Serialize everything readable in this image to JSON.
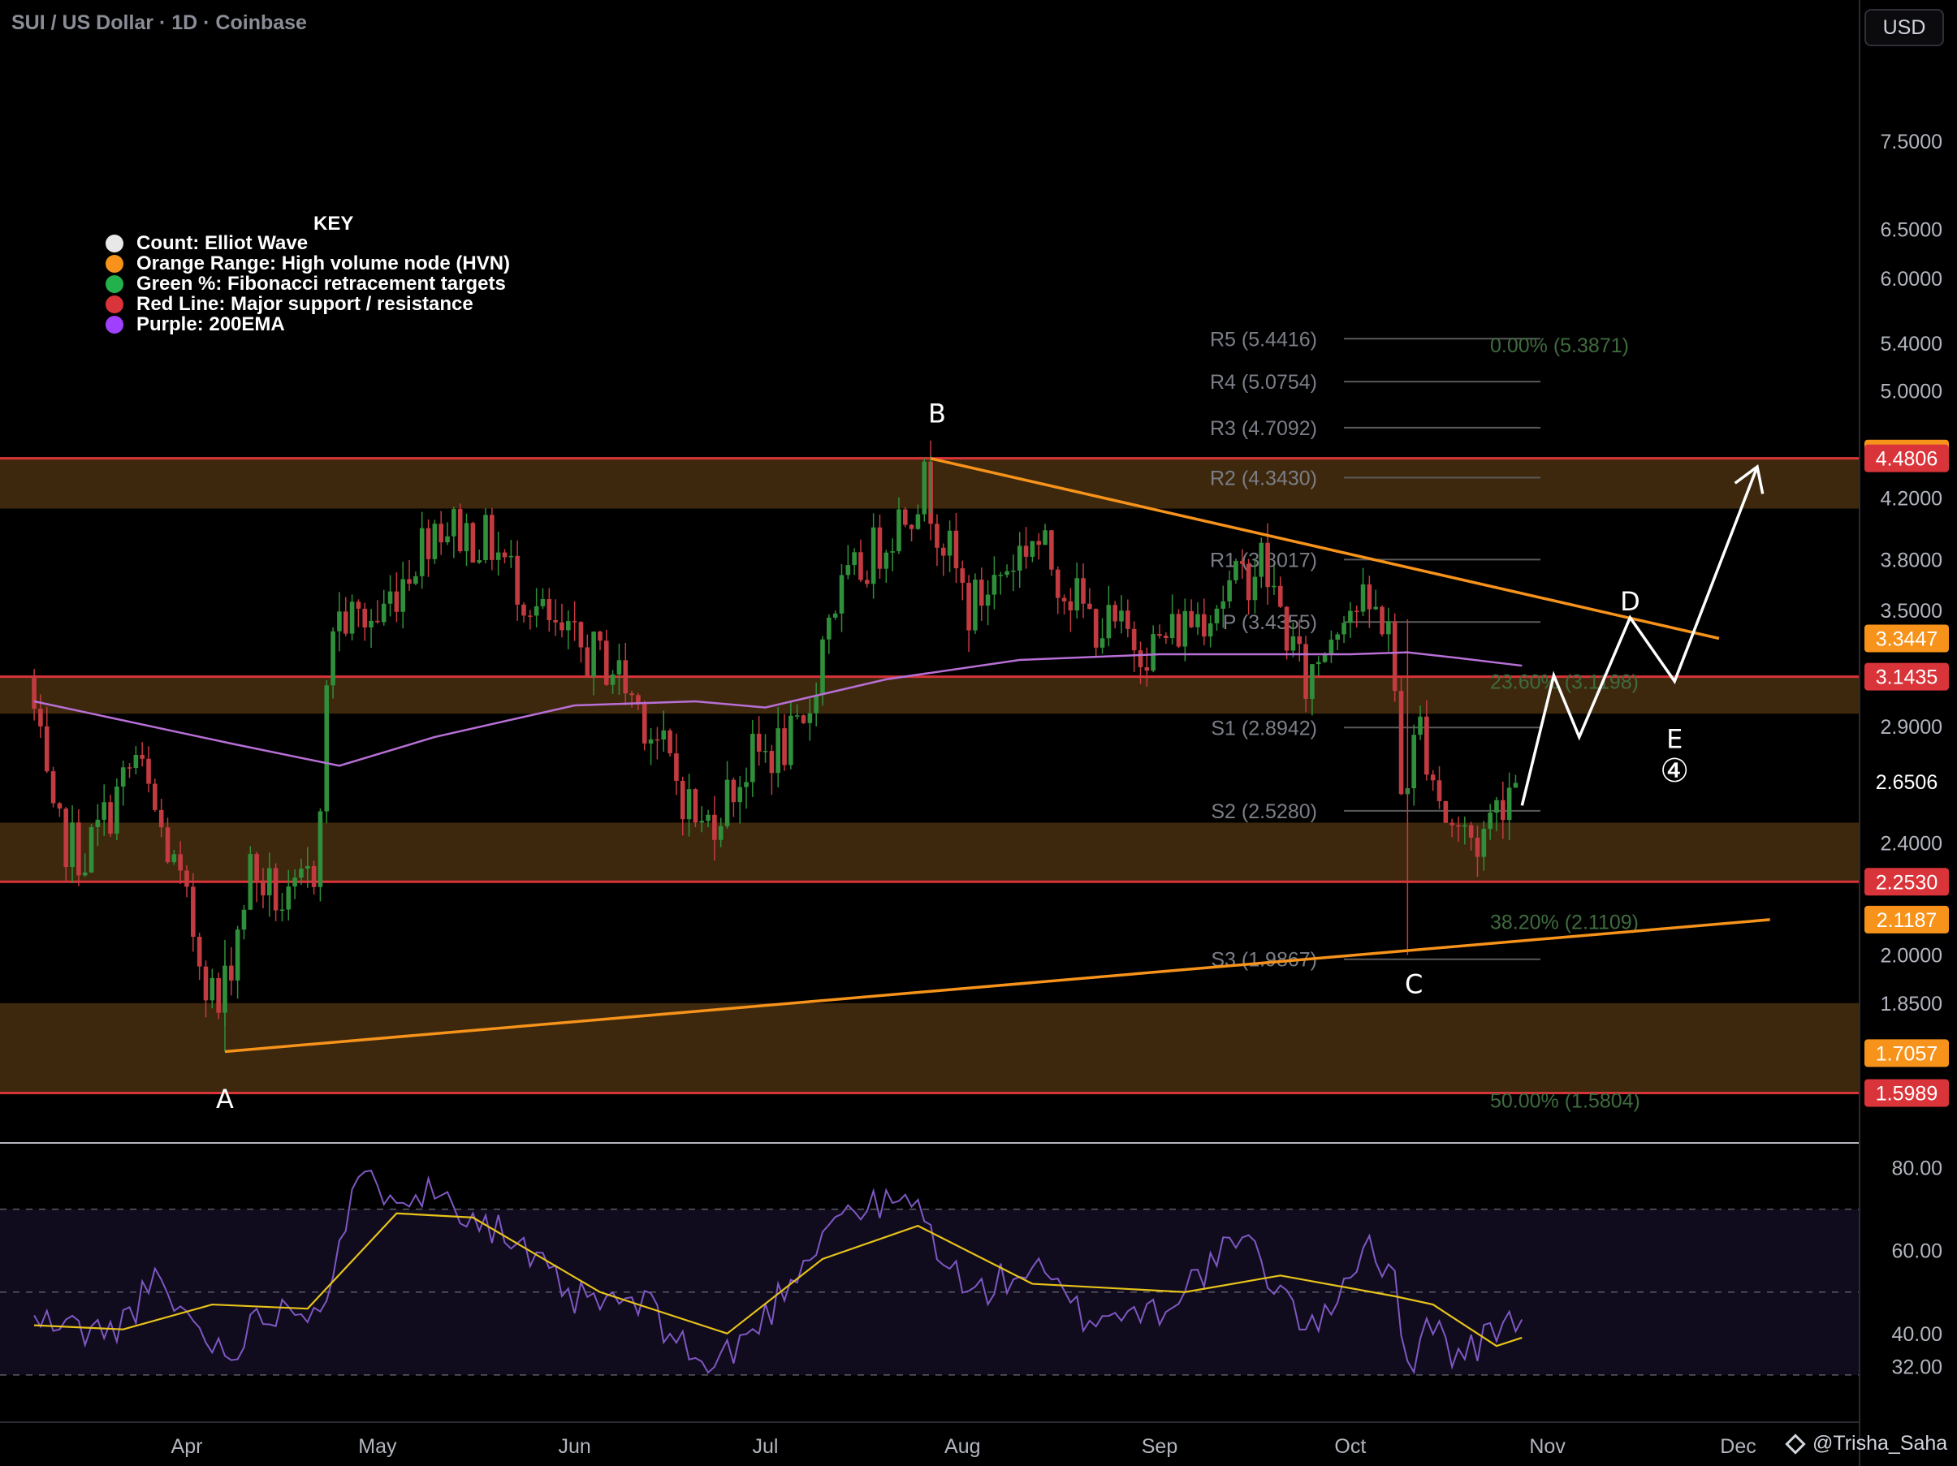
{
  "header": {
    "title": "SUI / US Dollar · 1D · Coinbase",
    "currency_button": "USD"
  },
  "key": {
    "title": "KEY",
    "items": [
      {
        "label": "Count: Elliot Wave",
        "color": "#e8e8e8",
        "icon": "white-dot-icon"
      },
      {
        "label": "Orange Range: High volume node (HVN)",
        "color": "#f7931a",
        "icon": "orange-dot-icon"
      },
      {
        "label": "Green %: Fibonacci retracement targets",
        "color": "#22b14c",
        "icon": "green-dot-icon"
      },
      {
        "label": "Red Line: Major support / resistance",
        "color": "#d9343a",
        "icon": "red-dot-icon"
      },
      {
        "label": "Purple: 200EMA",
        "color": "#a040ff",
        "icon": "purple-dot-icon"
      }
    ]
  },
  "watermark": "@Trisha_Saha",
  "chart_data": [
    {
      "type": "candlestick",
      "title": "SUI / US Dollar · 1D · Coinbase",
      "x_labels": [
        "Apr",
        "May",
        "Jun",
        "Jul",
        "Aug",
        "Sep",
        "Oct",
        "Nov",
        "Dec"
      ],
      "y_scale": "log",
      "y_ticks": [
        "7.5000",
        "6.5000",
        "6.0000",
        "5.4000",
        "5.0000",
        "4.2000",
        "3.8000",
        "3.5000",
        "2.9000",
        "2.4000",
        "2.0000",
        "1.8500"
      ],
      "ylim": [
        1.49,
        8.6
      ],
      "grid": false,
      "colors": {
        "up": "#2f8f3a",
        "down": "#c23b40",
        "ema": "#b86fd6",
        "hvn_fill": "#3d280d",
        "support": "#d9343a",
        "trendline": "#f7931a",
        "projection": "#ffffff",
        "pivot_line": "#5a5a5a",
        "pivot_text": "#7b7e86",
        "fib_text": "#3f6b3f"
      },
      "price_labels": [
        {
          "value": "4.5158",
          "price": 4.5158,
          "color": "#f7931a"
        },
        {
          "value": "4.4806",
          "price": 4.4806,
          "color": "#d9343a"
        },
        {
          "value": "3.3447",
          "price": 3.3447,
          "color": "#f7931a"
        },
        {
          "value": "3.1435",
          "price": 3.1435,
          "color": "#d9343a"
        },
        {
          "value": "2.6506",
          "price": 2.6506,
          "color": ""
        },
        {
          "value": "2.2530",
          "price": 2.253,
          "color": "#d9343a"
        },
        {
          "value": "2.1187",
          "price": 2.1187,
          "color": "#f7931a"
        },
        {
          "value": "1.7057",
          "price": 1.7057,
          "color": "#f7931a"
        },
        {
          "value": "1.5989",
          "price": 1.5989,
          "color": "#d9343a"
        }
      ],
      "hvn_zones": [
        [
          4.13,
          4.48
        ],
        [
          2.96,
          3.14
        ],
        [
          2.25,
          2.48
        ],
        [
          1.6,
          1.85
        ]
      ],
      "support_lines": [
        4.4806,
        3.1435,
        2.253,
        1.5989
      ],
      "pivots": [
        {
          "label": "R5 (5.4416)",
          "price": 5.4416
        },
        {
          "label": "R4 (5.0754)",
          "price": 5.0754
        },
        {
          "label": "R3 (4.7092)",
          "price": 4.7092
        },
        {
          "label": "R2 (4.3430)",
          "price": 4.343
        },
        {
          "label": "R1 (3.8017)",
          "price": 3.8017
        },
        {
          "label": "P (3.4355)",
          "price": 3.4355
        },
        {
          "label": "S1 (2.8942)",
          "price": 2.8942
        },
        {
          "label": "S2 (2.5280)",
          "price": 2.528
        },
        {
          "label": "S3 (1.9867)",
          "price": 1.9867
        }
      ],
      "fib_levels": [
        {
          "label": "0.00% (5.3871)",
          "price": 5.3871
        },
        {
          "label": "23.60% (3.1198)",
          "price": 3.1198
        },
        {
          "label": "38.20% (2.1109)",
          "price": 2.1109
        },
        {
          "label": "50.00% (1.5804)",
          "price": 1.5804
        }
      ],
      "wave_labels": [
        {
          "text": "A",
          "date": "2025-04-07",
          "price": 1.56
        },
        {
          "text": "B",
          "date": "2025-07-28",
          "price": 4.75
        },
        {
          "text": "C",
          "date": "2025-10-11",
          "price": 1.88
        },
        {
          "text": "D",
          "date": "2025-11-14",
          "price": 3.5
        },
        {
          "text": "E",
          "date": "2025-11-21",
          "price": 2.8
        },
        {
          "text": "④",
          "date": "2025-11-21",
          "price": 2.65
        }
      ],
      "trendlines": [
        {
          "from": {
            "date": "2025-04-07",
            "price": 1.71
          },
          "to": {
            "date": "2025-12-06",
            "price": 2.1187
          }
        },
        {
          "from": {
            "date": "2025-07-27",
            "price": 4.48
          },
          "to": {
            "date": "2025-11-28",
            "price": 3.3447
          }
        }
      ],
      "projection_path": [
        {
          "date": "2025-10-28",
          "price": 2.55
        },
        {
          "date": "2025-11-02",
          "price": 3.15
        },
        {
          "date": "2025-11-06",
          "price": 2.85
        },
        {
          "date": "2025-11-14",
          "price": 3.46
        },
        {
          "date": "2025-11-21",
          "price": 3.12
        },
        {
          "date": "2025-12-04",
          "price": 4.42
        }
      ],
      "ema200": [
        {
          "date": "2025-03-08",
          "price": 3.02
        },
        {
          "date": "2025-04-08",
          "price": 2.82
        },
        {
          "date": "2025-04-25",
          "price": 2.72
        },
        {
          "date": "2025-05-10",
          "price": 2.85
        },
        {
          "date": "2025-06-01",
          "price": 3.0
        },
        {
          "date": "2025-06-20",
          "price": 3.02
        },
        {
          "date": "2025-07-01",
          "price": 2.99
        },
        {
          "date": "2025-07-20",
          "price": 3.13
        },
        {
          "date": "2025-08-10",
          "price": 3.23
        },
        {
          "date": "2025-09-01",
          "price": 3.26
        },
        {
          "date": "2025-10-01",
          "price": 3.26
        },
        {
          "date": "2025-10-10",
          "price": 3.27
        },
        {
          "date": "2025-10-18",
          "price": 3.24
        },
        {
          "date": "2025-10-28",
          "price": 3.2
        }
      ],
      "price_path": [
        {
          "date": "2025-03-08",
          "price": 3.15
        },
        {
          "date": "2025-03-12",
          "price": 2.45
        },
        {
          "date": "2025-03-17",
          "price": 2.35
        },
        {
          "date": "2025-03-25",
          "price": 2.75
        },
        {
          "date": "2025-03-31",
          "price": 2.3
        },
        {
          "date": "2025-04-07",
          "price": 1.82
        },
        {
          "date": "2025-04-12",
          "price": 2.3
        },
        {
          "date": "2025-04-18",
          "price": 2.15
        },
        {
          "date": "2025-04-22",
          "price": 2.3
        },
        {
          "date": "2025-04-25",
          "price": 3.45
        },
        {
          "date": "2025-05-02",
          "price": 3.45
        },
        {
          "date": "2025-05-11",
          "price": 4.05
        },
        {
          "date": "2025-05-20",
          "price": 3.9
        },
        {
          "date": "2025-05-30",
          "price": 3.35
        },
        {
          "date": "2025-06-08",
          "price": 3.2
        },
        {
          "date": "2025-06-13",
          "price": 2.95
        },
        {
          "date": "2025-06-22",
          "price": 2.45
        },
        {
          "date": "2025-06-30",
          "price": 2.75
        },
        {
          "date": "2025-07-08",
          "price": 2.85
        },
        {
          "date": "2025-07-12",
          "price": 3.5
        },
        {
          "date": "2025-07-20",
          "price": 3.9
        },
        {
          "date": "2025-07-27",
          "price": 4.3
        },
        {
          "date": "2025-08-03",
          "price": 3.5
        },
        {
          "date": "2025-08-13",
          "price": 3.95
        },
        {
          "date": "2025-08-22",
          "price": 3.45
        },
        {
          "date": "2025-09-01",
          "price": 3.3
        },
        {
          "date": "2025-09-14",
          "price": 3.65
        },
        {
          "date": "2025-09-18",
          "price": 3.8
        },
        {
          "date": "2025-09-25",
          "price": 3.1
        },
        {
          "date": "2025-10-01",
          "price": 3.55
        },
        {
          "date": "2025-10-08",
          "price": 3.45
        },
        {
          "date": "2025-10-10",
          "price": 2.6
        },
        {
          "date": "2025-10-13",
          "price": 2.9
        },
        {
          "date": "2025-10-17",
          "price": 2.5
        },
        {
          "date": "2025-10-22",
          "price": 2.4
        },
        {
          "date": "2025-10-27",
          "price": 2.65
        }
      ]
    },
    {
      "type": "line",
      "title": "RSI",
      "y_ticks": [
        "80.00",
        "60.00",
        "40.00",
        "32.00"
      ],
      "ylim": [
        19,
        86
      ],
      "band": [
        30,
        70
      ],
      "midline": 50,
      "colors": {
        "rsi": "#7e57c2",
        "signal": "#e8c31a",
        "band_fill": "#100c1d",
        "band_line": "#5b5b66"
      },
      "rsi": [
        {
          "date": "2025-03-08",
          "value": 43
        },
        {
          "date": "2025-03-20",
          "value": 40
        },
        {
          "date": "2025-03-27",
          "value": 52
        },
        {
          "date": "2025-04-07",
          "value": 35
        },
        {
          "date": "2025-04-14",
          "value": 46
        },
        {
          "date": "2025-04-22",
          "value": 47
        },
        {
          "date": "2025-04-28",
          "value": 76
        },
        {
          "date": "2025-05-05",
          "value": 75
        },
        {
          "date": "2025-05-12",
          "value": 73
        },
        {
          "date": "2025-05-20",
          "value": 65
        },
        {
          "date": "2025-06-01",
          "value": 48
        },
        {
          "date": "2025-06-12",
          "value": 47
        },
        {
          "date": "2025-06-22",
          "value": 31
        },
        {
          "date": "2025-06-30",
          "value": 42
        },
        {
          "date": "2025-07-12",
          "value": 69
        },
        {
          "date": "2025-07-24",
          "value": 72
        },
        {
          "date": "2025-08-02",
          "value": 49
        },
        {
          "date": "2025-08-12",
          "value": 56
        },
        {
          "date": "2025-08-20",
          "value": 44
        },
        {
          "date": "2025-09-01",
          "value": 46
        },
        {
          "date": "2025-09-14",
          "value": 63
        },
        {
          "date": "2025-09-25",
          "value": 40
        },
        {
          "date": "2025-10-04",
          "value": 63
        },
        {
          "date": "2025-10-08",
          "value": 51
        },
        {
          "date": "2025-10-10",
          "value": 30
        },
        {
          "date": "2025-10-13",
          "value": 45
        },
        {
          "date": "2025-10-18",
          "value": 34
        },
        {
          "date": "2025-10-26",
          "value": 43
        },
        {
          "date": "2025-10-28",
          "value": 46
        }
      ],
      "signal": [
        {
          "date": "2025-03-08",
          "value": 42
        },
        {
          "date": "2025-03-22",
          "value": 41
        },
        {
          "date": "2025-04-05",
          "value": 47
        },
        {
          "date": "2025-04-20",
          "value": 46
        },
        {
          "date": "2025-05-04",
          "value": 69
        },
        {
          "date": "2025-05-16",
          "value": 68
        },
        {
          "date": "2025-06-05",
          "value": 50
        },
        {
          "date": "2025-06-25",
          "value": 40
        },
        {
          "date": "2025-07-10",
          "value": 58
        },
        {
          "date": "2025-07-25",
          "value": 66
        },
        {
          "date": "2025-08-12",
          "value": 52
        },
        {
          "date": "2025-09-05",
          "value": 50
        },
        {
          "date": "2025-09-20",
          "value": 54
        },
        {
          "date": "2025-10-08",
          "value": 49
        },
        {
          "date": "2025-10-14",
          "value": 47
        },
        {
          "date": "2025-10-24",
          "value": 37
        },
        {
          "date": "2025-10-28",
          "value": 39
        }
      ]
    }
  ]
}
